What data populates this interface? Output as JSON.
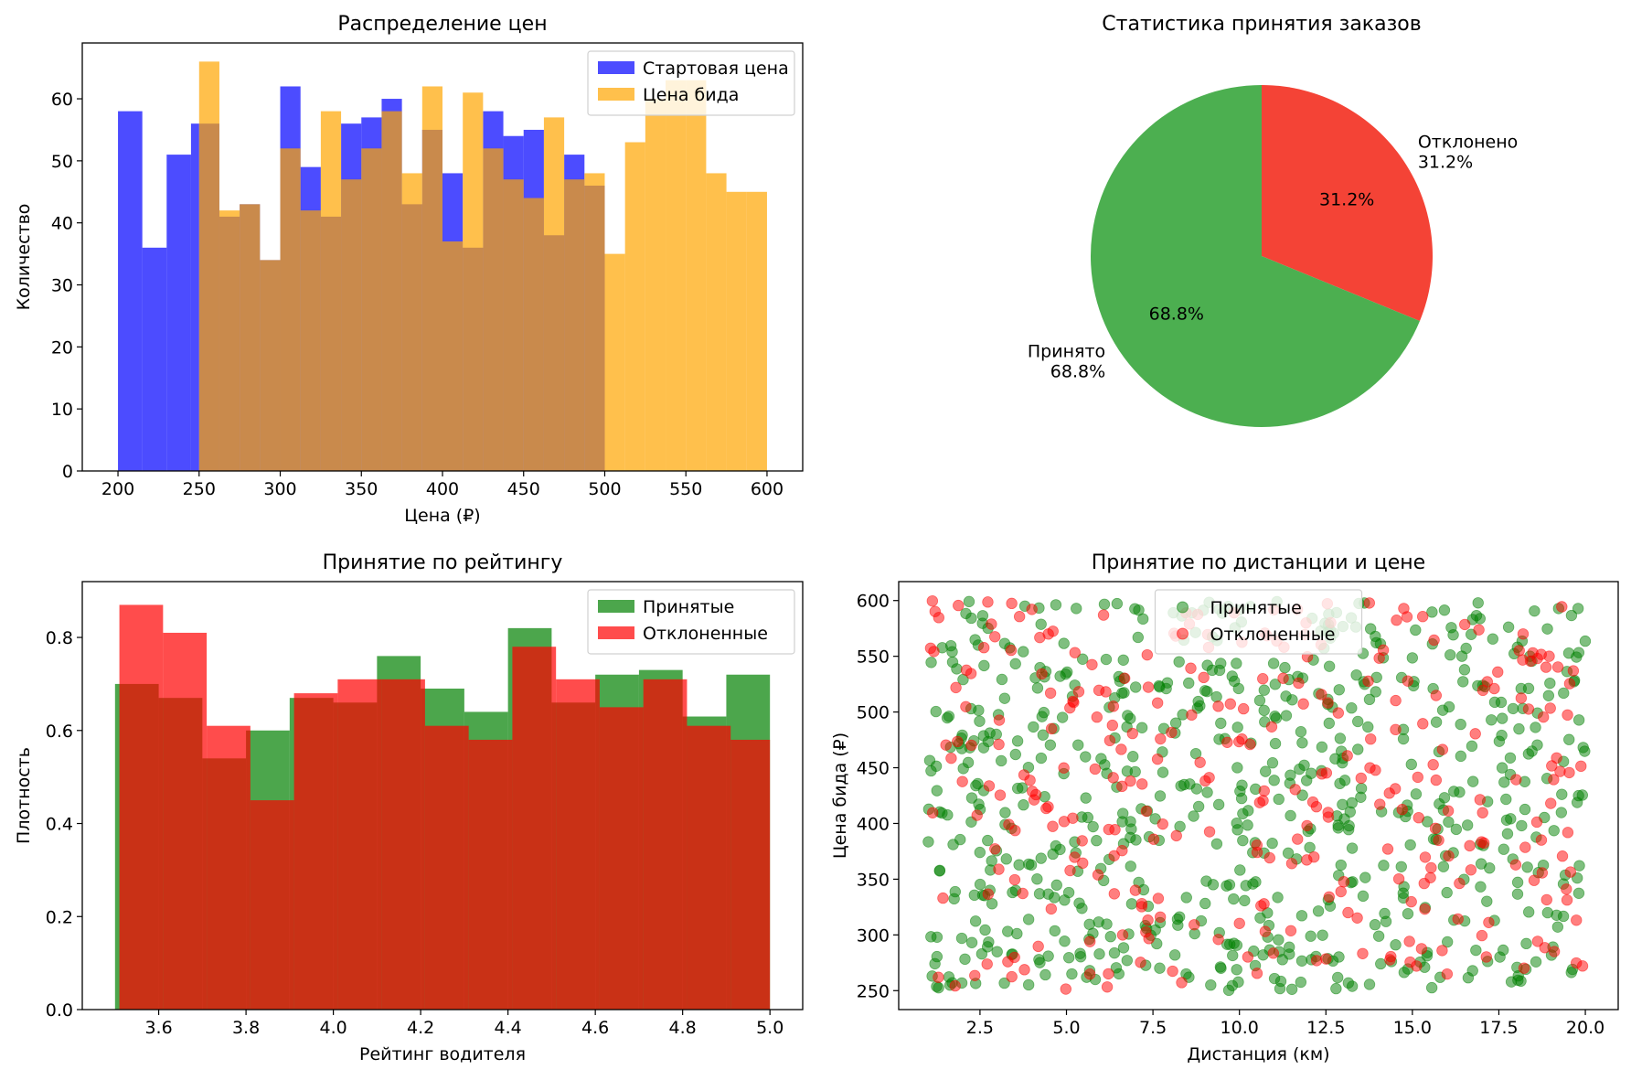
{
  "chart_data": [
    {
      "type": "histogram",
      "title": "Распределение цен",
      "xlabel": "Цена (₽)",
      "ylabel": "Количество",
      "xlim": [
        178,
        622
      ],
      "ylim": [
        0,
        69
      ],
      "xticks": [
        200,
        250,
        300,
        350,
        400,
        450,
        500,
        550,
        600
      ],
      "yticks": [
        0,
        10,
        20,
        30,
        40,
        50,
        60
      ],
      "legend_position": "top-right",
      "series": [
        {
          "name": "Стартовая цена",
          "color": "#0000ff",
          "alpha": 0.7,
          "bin_edges": [
            200,
            215,
            230,
            245,
            250,
            262.5,
            275,
            287.5,
            300,
            312.5,
            325,
            337.5,
            350,
            362.5,
            375,
            387.5,
            400,
            412.5,
            425,
            437.5,
            450,
            462.5,
            475,
            487.5,
            500
          ],
          "counts": [
            58,
            36,
            51,
            56,
            56,
            41,
            43,
            34,
            62,
            49,
            41,
            56,
            57,
            60,
            43,
            55,
            48,
            36,
            58,
            54,
            55,
            38,
            51,
            46
          ]
        },
        {
          "name": "Цена бида",
          "color": "#ffa500",
          "alpha": 0.7,
          "bin_edges": [
            250,
            262.5,
            275,
            287.5,
            300,
            312.5,
            325,
            337.5,
            350,
            362.5,
            375,
            387.5,
            400,
            412.5,
            425,
            437.5,
            450,
            462.5,
            475,
            487.5,
            500,
            512.5,
            525,
            537.5,
            550,
            562.5,
            575,
            587.5,
            600
          ],
          "counts": [
            66,
            42,
            43,
            34,
            52,
            42,
            58,
            47,
            52,
            58,
            48,
            62,
            37,
            61,
            52,
            47,
            44,
            57,
            47,
            48,
            35,
            53,
            60,
            63,
            63,
            48,
            45,
            45
          ]
        }
      ]
    },
    {
      "type": "pie",
      "title": "Статистика принятия заказов",
      "slices": [
        {
          "label": "Отклонено",
          "value": 31.2,
          "pct_label": "31.2%",
          "outer_label": "Отклонено\n31.2%",
          "color": "#f44336"
        },
        {
          "label": "Принято",
          "value": 68.8,
          "pct_label": "68.8%",
          "outer_label": "Принято\n68.8%",
          "color": "#4caf50"
        }
      ],
      "start_angle": 90,
      "direction": "clockwise"
    },
    {
      "type": "histogram",
      "title": "Принятие по рейтингу",
      "xlabel": "Рейтинг водителя",
      "ylabel": "Плотность",
      "xlim": [
        3.425,
        5.075
      ],
      "ylim": [
        0,
        0.92
      ],
      "xticks": [
        3.6,
        3.8,
        4.0,
        4.2,
        4.4,
        4.6,
        4.8,
        5.0
      ],
      "yticks": [
        0.0,
        0.2,
        0.4,
        0.6,
        0.8
      ],
      "legend_position": "top-right",
      "series": [
        {
          "name": "Принятые",
          "color": "#008000",
          "alpha": 0.7,
          "bin_edges": [
            3.5,
            3.6,
            3.7,
            3.8,
            3.9,
            4.0,
            4.1,
            4.2,
            4.3,
            4.4,
            4.5,
            4.6,
            4.7,
            4.8,
            4.9,
            5.0
          ],
          "values": [
            0.7,
            0.67,
            0.54,
            0.6,
            0.67,
            0.66,
            0.76,
            0.69,
            0.64,
            0.82,
            0.66,
            0.72,
            0.73,
            0.63,
            0.72
          ]
        },
        {
          "name": "Отклоненные",
          "color": "#ff0000",
          "alpha": 0.7,
          "bin_edges": [
            3.51,
            3.61,
            3.71,
            3.81,
            3.91,
            4.01,
            4.11,
            4.21,
            4.31,
            4.41,
            4.51,
            4.61,
            4.71,
            4.81,
            4.91,
            5.0
          ],
          "values": [
            0.87,
            0.81,
            0.61,
            0.45,
            0.68,
            0.71,
            0.71,
            0.61,
            0.58,
            0.78,
            0.71,
            0.65,
            0.71,
            0.61,
            0.58
          ]
        }
      ]
    },
    {
      "type": "scatter",
      "title": "Принятие по дистанции и цене",
      "xlabel": "Дистанция (км)",
      "ylabel": "Цена бида (₽)",
      "xlim": [
        0.15,
        20.95
      ],
      "ylim": [
        233,
        617
      ],
      "xticks": [
        2.5,
        5.0,
        7.5,
        10.0,
        12.5,
        15.0,
        17.5,
        20.0
      ],
      "yticks": [
        250,
        300,
        350,
        400,
        450,
        500,
        550,
        600
      ],
      "legend_position": "top-center",
      "series": [
        {
          "name": "Принятые",
          "color": "#008000",
          "alpha": 0.5,
          "count": 688,
          "x_range": [
            1,
            20
          ],
          "y_range": [
            250,
            600
          ]
        },
        {
          "name": "Отклоненные",
          "color": "#ff0000",
          "alpha": 0.5,
          "count": 312,
          "x_range": [
            1,
            20
          ],
          "y_range": [
            250,
            600
          ]
        }
      ]
    }
  ]
}
